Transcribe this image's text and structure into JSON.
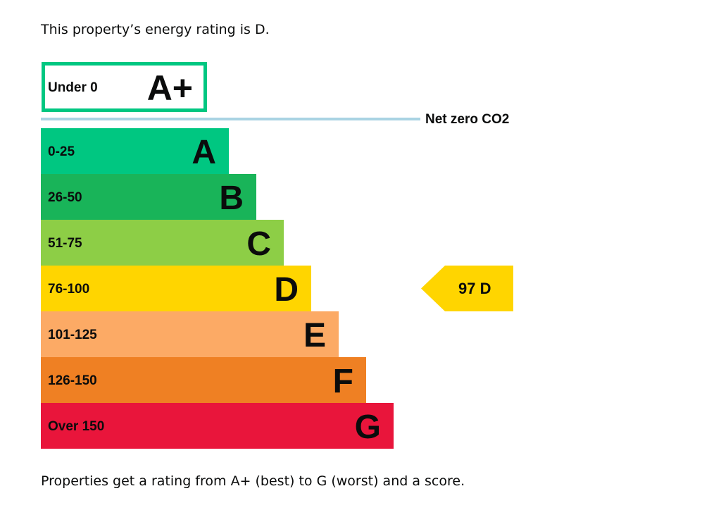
{
  "intro": "This property’s energy rating is D.",
  "outro": "Properties get a rating from A+ (best) to G (worst) and a score.",
  "chart_data": {
    "type": "bar",
    "top_band": {
      "range": "Under 0",
      "letter": "A+",
      "color": "#00c781"
    },
    "net_zero_label": "Net zero CO2",
    "net_zero_color": "#a9d3e3",
    "bands": [
      {
        "range": "0-25",
        "letter": "A",
        "color": "#00c781"
      },
      {
        "range": "26-50",
        "letter": "B",
        "color": "#19b459"
      },
      {
        "range": "51-75",
        "letter": "C",
        "color": "#8dce46"
      },
      {
        "range": "76-100",
        "letter": "D",
        "color": "#ffd500"
      },
      {
        "range": "101-125",
        "letter": "E",
        "color": "#fcaa65"
      },
      {
        "range": "126-150",
        "letter": "F",
        "color": "#ef8023"
      },
      {
        "range": "Over 150",
        "letter": "G",
        "color": "#e9153b"
      }
    ],
    "current": {
      "score": 97,
      "letter": "D",
      "label": "97  D",
      "color": "#ffd500"
    }
  }
}
